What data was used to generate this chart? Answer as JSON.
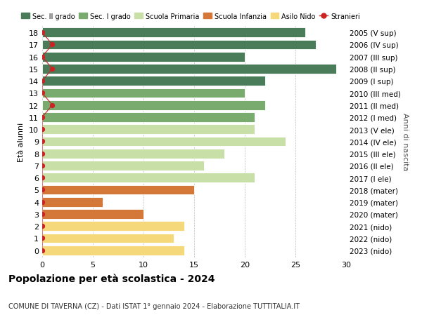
{
  "ages": [
    18,
    17,
    16,
    15,
    14,
    13,
    12,
    11,
    10,
    9,
    8,
    7,
    6,
    5,
    4,
    3,
    2,
    1,
    0
  ],
  "values": [
    26,
    27,
    20,
    29,
    22,
    20,
    22,
    21,
    21,
    24,
    18,
    16,
    21,
    15,
    6,
    10,
    14,
    13,
    14
  ],
  "stranieri": [
    0,
    1,
    0,
    1,
    0,
    0,
    1,
    0,
    0,
    0,
    0,
    0,
    0,
    0,
    0,
    0,
    0,
    0,
    0
  ],
  "right_labels": [
    "2005 (V sup)",
    "2006 (IV sup)",
    "2007 (III sup)",
    "2008 (II sup)",
    "2009 (I sup)",
    "2010 (III med)",
    "2011 (II med)",
    "2012 (I med)",
    "2013 (V ele)",
    "2014 (IV ele)",
    "2015 (III ele)",
    "2016 (II ele)",
    "2017 (I ele)",
    "2018 (mater)",
    "2019 (mater)",
    "2020 (mater)",
    "2021 (nido)",
    "2022 (nido)",
    "2023 (nido)"
  ],
  "bar_colors": [
    "#4a7c59",
    "#4a7c59",
    "#4a7c59",
    "#4a7c59",
    "#4a7c59",
    "#7aab6e",
    "#7aab6e",
    "#7aab6e",
    "#c8dfa8",
    "#c8dfa8",
    "#c8dfa8",
    "#c8dfa8",
    "#c8dfa8",
    "#d4783a",
    "#d4783a",
    "#d4783a",
    "#f5d87a",
    "#f5d87a",
    "#f5d87a"
  ],
  "legend_labels": [
    "Sec. II grado",
    "Sec. I grado",
    "Scuola Primaria",
    "Scuola Infanzia",
    "Asilo Nido",
    "Stranieri"
  ],
  "legend_colors": [
    "#4a7c59",
    "#7aab6e",
    "#c8dfa8",
    "#d4783a",
    "#f5d87a",
    "#cc2222"
  ],
  "title": "Popolazione per età scolastica - 2024",
  "subtitle": "COMUNE DI TAVERNA (CZ) - Dati ISTAT 1° gennaio 2024 - Elaborazione TUTTITALIA.IT",
  "right_ylabel": "Anni di nascita",
  "ylabel": "Età alunni",
  "xlim": [
    0,
    30
  ],
  "xticks": [
    0,
    5,
    10,
    15,
    20,
    25,
    30
  ],
  "background_color": "#ffffff",
  "grid_color": "#bbbbbb",
  "stranieri_color": "#cc2222"
}
